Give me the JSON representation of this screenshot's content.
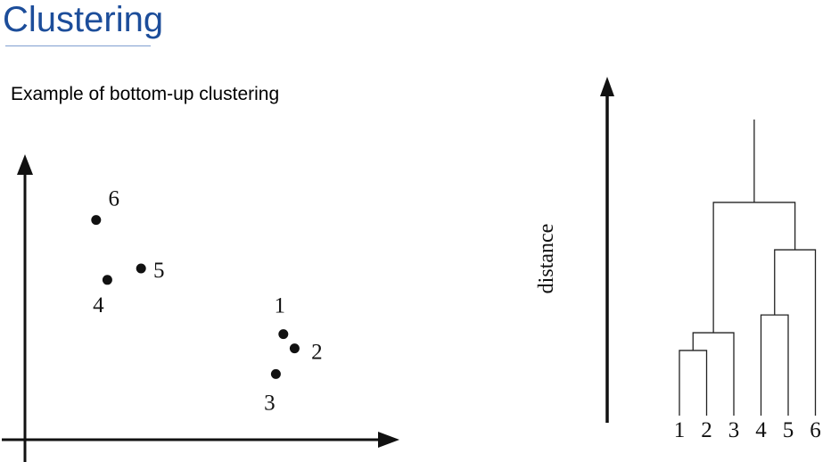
{
  "slide": {
    "title": "Clustering",
    "subtitle": "Example of bottom-up clustering"
  },
  "scatter": {
    "points": [
      {
        "label": "1",
        "x": 0.69,
        "y": 0.37
      },
      {
        "label": "2",
        "x": 0.72,
        "y": 0.32
      },
      {
        "label": "3",
        "x": 0.67,
        "y": 0.23
      },
      {
        "label": "4",
        "x": 0.22,
        "y": 0.56
      },
      {
        "label": "5",
        "x": 0.31,
        "y": 0.6
      },
      {
        "label": "6",
        "x": 0.19,
        "y": 0.77
      }
    ]
  },
  "dendrogram": {
    "axis_label": "distance",
    "leaves": [
      "1",
      "2",
      "3",
      "4",
      "5",
      "6"
    ],
    "merges": [
      {
        "left": "1",
        "right": "2",
        "height": 0.22
      },
      {
        "left": "4",
        "right": "5",
        "height": 0.34
      },
      {
        "left": "1-2",
        "right": "3",
        "height": 0.28
      },
      {
        "left": "4-5",
        "right": "6",
        "height": 0.56
      },
      {
        "left": "1-2-3",
        "right": "4-5-6",
        "height": 0.72
      }
    ],
    "root_height": 1.0
  }
}
